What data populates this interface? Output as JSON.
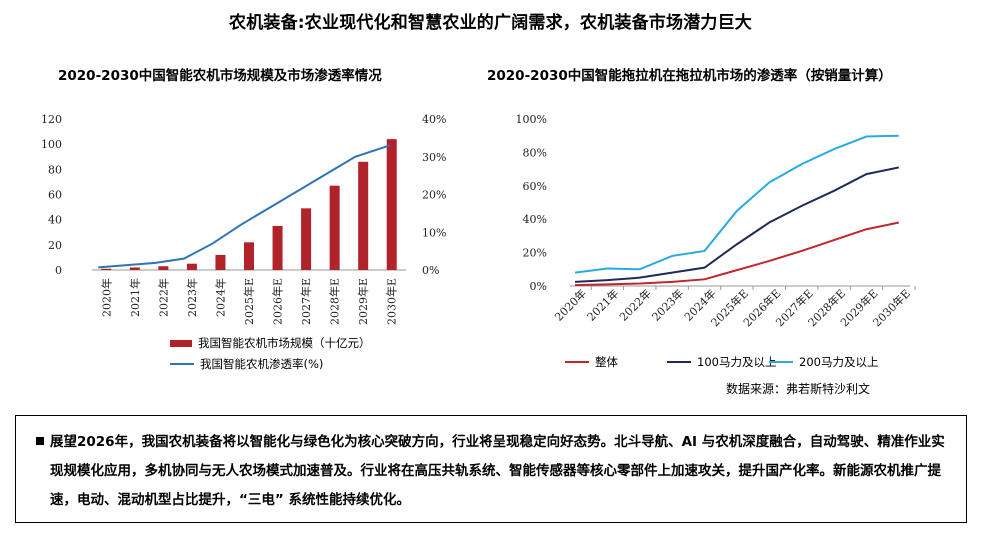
{
  "title": "农机装备:农业现代化和智慧农业的广阔需求，农机装备市场潜力巨大",
  "source": "数据来源：弗若斯特沙利文",
  "summary": "展望2026年，我国农机装备将以智能化与绿色化为核心突破方向，行业将呈现稳定向好态势。北斗导航、AI 与农机深度融合，自动驾驶、精准作业实现规模化应用，多机协同与无人农场模式加速普及。行业将在高压共轨系统、智能传感器等核心零部件上加速攻关，提升国产化率。新能源农机推广提速，电动、混动机型占比提升，“三电” 系统性能持续优化。",
  "colors": {
    "bar": "#b0232a",
    "rate_line": "#2f75b5",
    "overall": "#c0272d",
    "hp100": "#1f2a5c",
    "hp200": "#29abe2"
  },
  "chart_data": [
    {
      "type": "bar",
      "title": "2020-2030中国智能农机市场规模及市场渗透率情况",
      "categories": [
        "2020年",
        "2021年",
        "2022年",
        "2023年",
        "2024年",
        "2025年E",
        "2026年E",
        "2027年E",
        "2028年E",
        "2029年E",
        "2030年E"
      ],
      "yticks": [
        "0",
        "20",
        "40",
        "60",
        "80",
        "100",
        "120"
      ],
      "y2ticks": [
        "0%",
        "10%",
        "20%",
        "30%",
        "40%"
      ],
      "ylim": [
        0,
        120
      ],
      "y2lim": [
        0,
        40
      ],
      "series": [
        {
          "name": "我国智能农机市场规模（十亿元）",
          "type": "bar",
          "axis": "left",
          "values": [
            1,
            2,
            3,
            5,
            12,
            22,
            35,
            49,
            67,
            86,
            104
          ]
        },
        {
          "name": "我国智能农机渗透率(%)",
          "type": "line",
          "axis": "right",
          "values": [
            0.7,
            1.3,
            1.9,
            3.0,
            7.0,
            12.0,
            16.5,
            21.0,
            25.5,
            30.0,
            33.0
          ]
        }
      ]
    },
    {
      "type": "line",
      "title": "2020-2030中国智能拖拉机在拖拉机市场的渗透率（按销量计算）",
      "categories": [
        "2020年",
        "2021年",
        "2022年",
        "2023年",
        "2024年",
        "2025年E",
        "2026年E",
        "2027年E",
        "2028年E",
        "2029年E",
        "2030年E"
      ],
      "yticks": [
        "0%",
        "20%",
        "40%",
        "60%",
        "80%",
        "100%"
      ],
      "ylim": [
        0,
        100
      ],
      "series": [
        {
          "name": "整体",
          "values": [
            0.5,
            1,
            1.5,
            2.5,
            4,
            9.5,
            15,
            21,
            27.5,
            34,
            38
          ]
        },
        {
          "name": "100马力及以上",
          "values": [
            2.5,
            3.5,
            5,
            8,
            11,
            25,
            38,
            48,
            57,
            67,
            71
          ]
        },
        {
          "name": "200马力及以上",
          "values": [
            8,
            10.5,
            10,
            18,
            21,
            45,
            62,
            73,
            82,
            89.5,
            90
          ]
        }
      ]
    }
  ]
}
